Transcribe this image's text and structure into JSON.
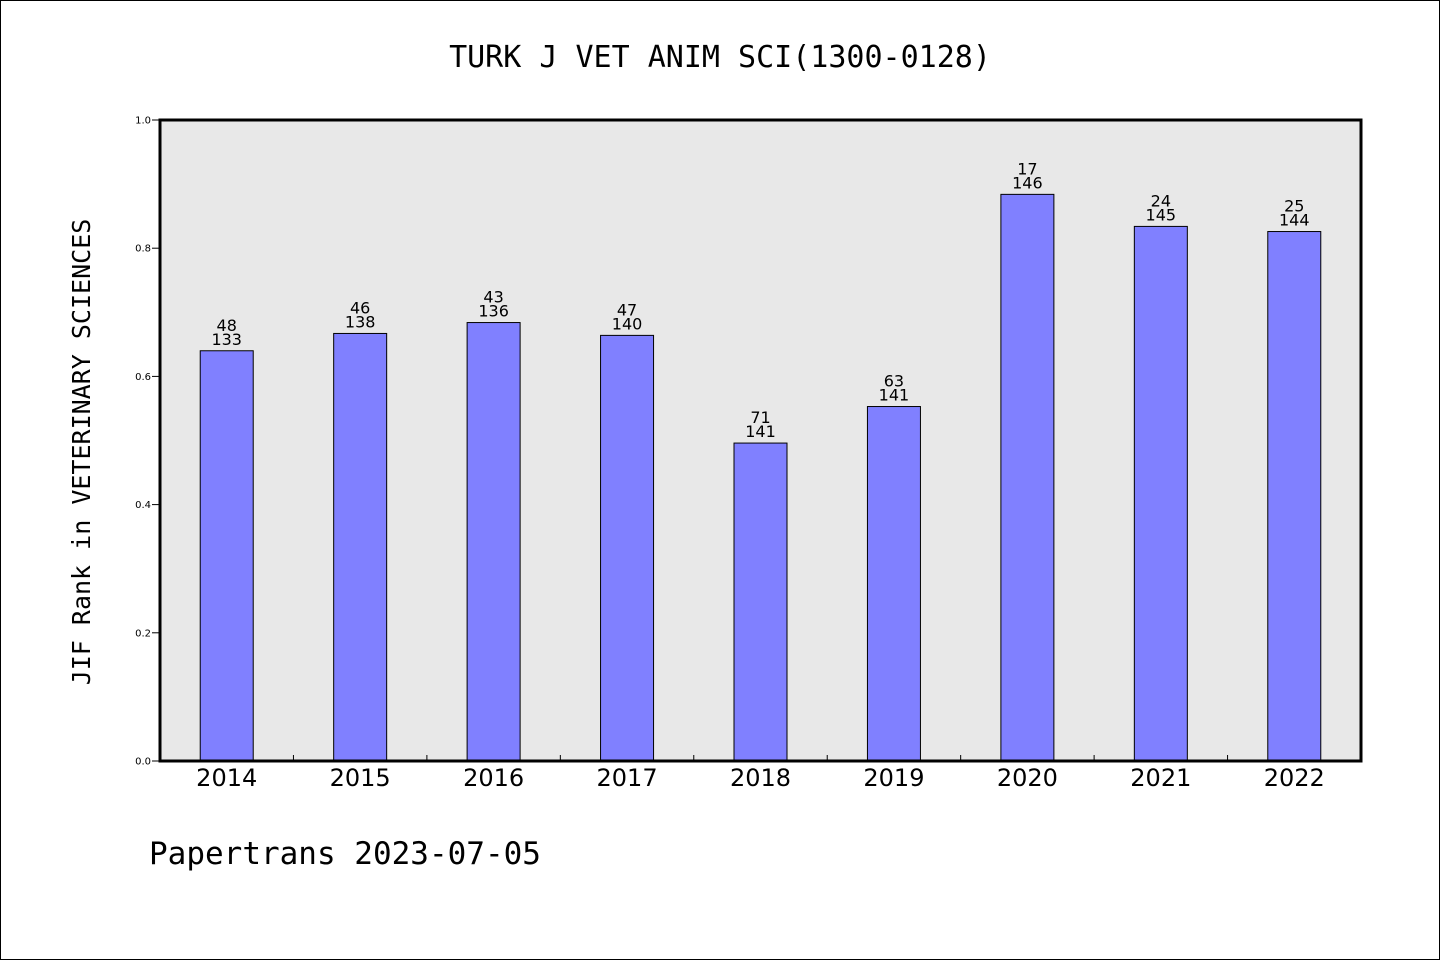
{
  "chart_data": {
    "type": "bar",
    "title": "TURK J VET ANIM SCI(1300-0128)",
    "xlabel": "",
    "ylabel": "JIF Rank in VETERINARY SCIENCES",
    "ylim": [
      0,
      1.0
    ],
    "yticks": [
      "0.0",
      "0.2",
      "0.4",
      "0.6",
      "0.8",
      "1.0"
    ],
    "grid": false,
    "categories": [
      "2014",
      "2015",
      "2016",
      "2017",
      "2018",
      "2019",
      "2020",
      "2021",
      "2022"
    ],
    "values": [
      0.64,
      0.667,
      0.684,
      0.664,
      0.496,
      0.553,
      0.884,
      0.834,
      0.826
    ],
    "rank_labels": [
      "48",
      "46",
      "43",
      "47",
      "71",
      "63",
      "17",
      "24",
      "25"
    ],
    "total_labels": [
      "133",
      "138",
      "136",
      "140",
      "141",
      "141",
      "146",
      "145",
      "144"
    ],
    "colors": {
      "bar": "#8080ff",
      "plot_background": "#e8e8e8",
      "axis": "#000000"
    }
  },
  "footer": {
    "text": "Papertrans 2023-07-05"
  }
}
